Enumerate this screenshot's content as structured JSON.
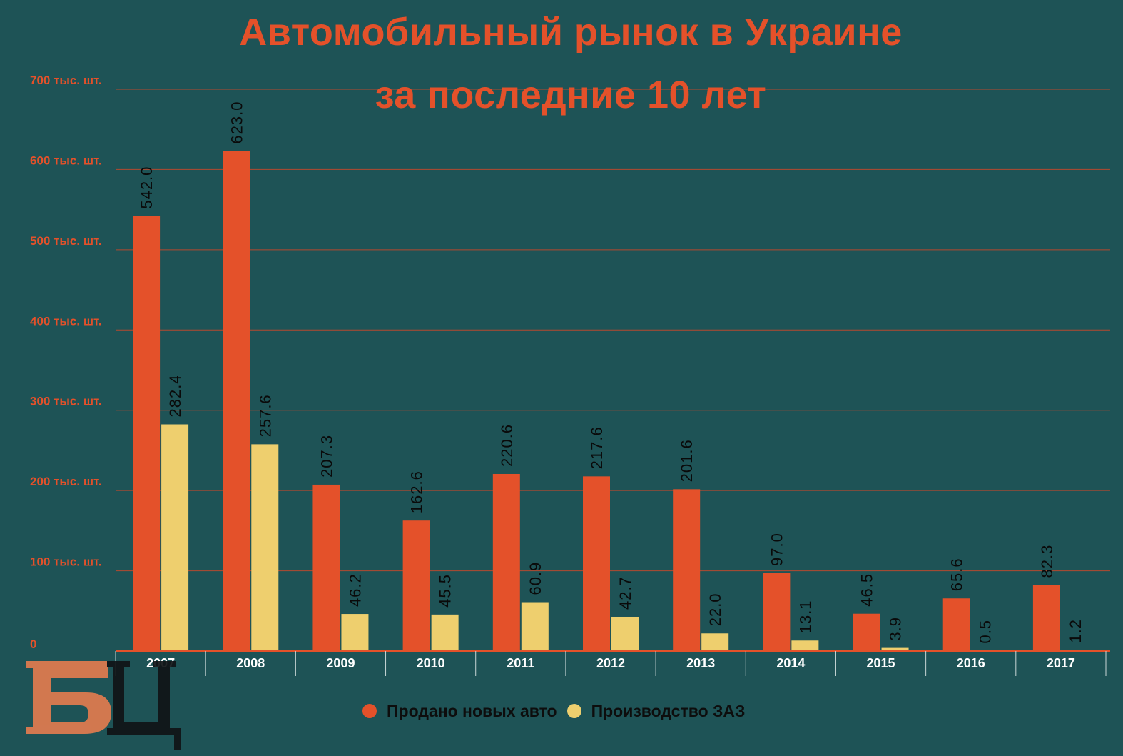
{
  "title_line1": "Автомобильный рынок в Украине",
  "title_line2": "за последние 10 лет",
  "colors": {
    "background": "#1e5356",
    "series1": "#e4512a",
    "series2": "#eecf6e",
    "gridline": "#b5492f",
    "axis_text": "#e4512a"
  },
  "logo_text": "БЦ",
  "chart_data": {
    "type": "bar",
    "title": "Автомобильный рынок в Украине за последние 10 лет",
    "categories": [
      "2007",
      "2008",
      "2009",
      "2010",
      "2011",
      "2012",
      "2013",
      "2014",
      "2015",
      "2016",
      "2017"
    ],
    "series": [
      {
        "name": "Продано новых авто",
        "values": [
          542.0,
          623.0,
          207.3,
          162.6,
          220.6,
          217.6,
          201.6,
          97.0,
          46.5,
          65.6,
          82.3
        ],
        "labels": [
          "542.0",
          "623.0",
          "207.3",
          "162.6",
          "220.6",
          "217.6",
          "201.6",
          "97.0",
          "46.5",
          "65.6",
          "82.3"
        ]
      },
      {
        "name": "Производство ЗАЗ",
        "values": [
          282.4,
          257.6,
          46.2,
          45.5,
          60.9,
          42.7,
          22.0,
          13.1,
          3.9,
          0.5,
          1.2
        ],
        "labels": [
          "282.4",
          "257.6",
          "46.2",
          "45.5",
          "60.9",
          "42.7",
          "22.0",
          "13.1",
          "3.9",
          "0.5",
          "1.2"
        ]
      }
    ],
    "yticks": [
      0,
      100,
      200,
      300,
      400,
      500,
      600,
      700
    ],
    "ytick_labels": [
      "0",
      "100 тыс. шт.",
      "200 тыс. шт.",
      "300 тыс. шт.",
      "400 тыс. шт.",
      "500 тыс. шт.",
      "600 тыс. шт.",
      "700 тыс. шт."
    ],
    "ylim": [
      0,
      700
    ],
    "xlabel": "",
    "ylabel": "",
    "grid": true,
    "legend_position": "bottom"
  }
}
